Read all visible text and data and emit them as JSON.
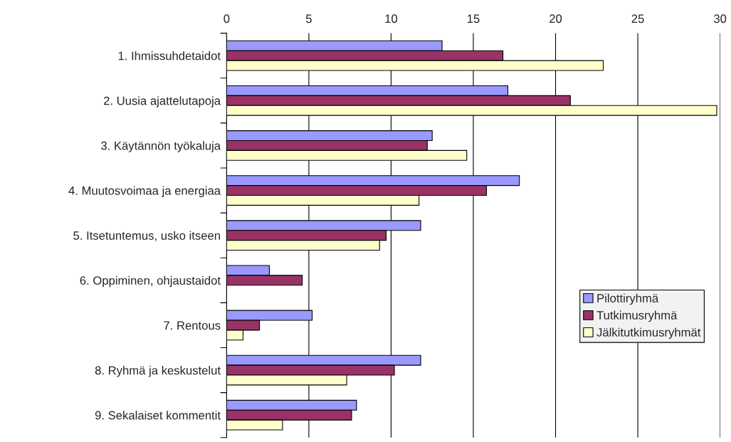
{
  "chart_data": {
    "type": "bar",
    "orientation": "horizontal",
    "categories": [
      "1. Ihmissuhdetaidot",
      "2. Uusia ajattelutapoja",
      "3. Käytännön työkaluja",
      "4. Muutosvoimaa ja energiaa",
      "5. Itsetuntemus, usko itseen",
      "6. Oppiminen, ohjaustaidot",
      "7. Rentous",
      "8. Ryhmä ja keskustelut",
      "9. Sekalaiset kommentit"
    ],
    "series": [
      {
        "name": "Pilottiryhmä",
        "color": "#9999ff",
        "values": [
          13.1,
          17.1,
          12.5,
          17.8,
          11.8,
          2.6,
          5.2,
          11.8,
          7.9
        ]
      },
      {
        "name": "Tutkimusryhmä",
        "color": "#993366",
        "values": [
          16.8,
          20.9,
          12.2,
          15.8,
          9.7,
          4.6,
          2.0,
          10.2,
          7.6
        ]
      },
      {
        "name": "Jälkitutkimusryhmät",
        "color": "#ffffcc",
        "values": [
          22.9,
          29.8,
          14.6,
          11.7,
          9.3,
          null,
          1.0,
          7.3,
          3.4
        ]
      }
    ],
    "xlim": [
      0,
      30
    ],
    "xticks": [
      0,
      5,
      10,
      15,
      20,
      25,
      30
    ],
    "grid": "x",
    "legend": "right"
  }
}
